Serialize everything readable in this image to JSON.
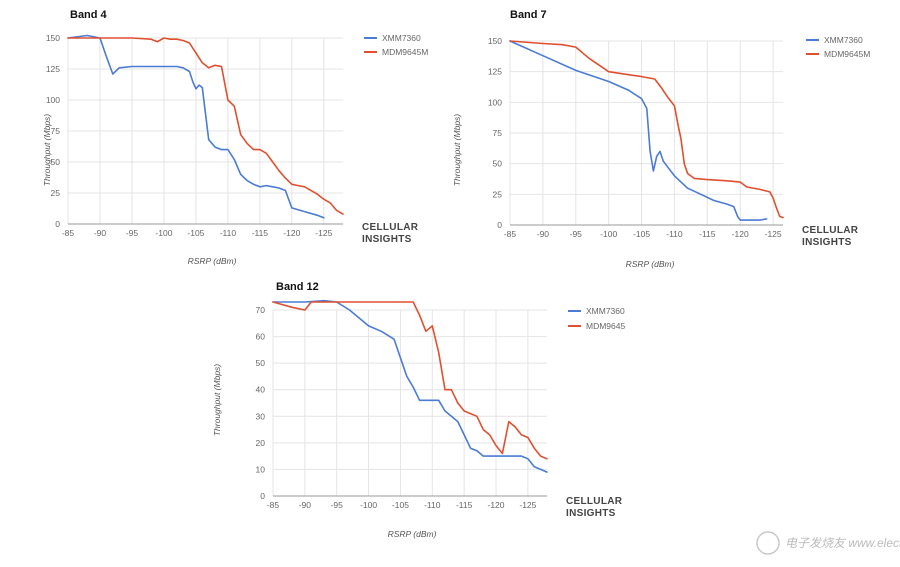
{
  "colors": {
    "xmm": "#4a7bd6",
    "mdm": "#e0502f"
  },
  "branding": {
    "line1": "CELLULAR",
    "line2": "INSIGHTS"
  },
  "watermark": "电子发烧友 www.elecfans.com",
  "chart_data": [
    {
      "type": "line",
      "title": "Band 4",
      "xlabel": "RSRP (dBm)",
      "ylabel": "Throughput (Mbps)",
      "xlim": [
        -85,
        -128
      ],
      "ylim": [
        0,
        150
      ],
      "xticks": [
        -85,
        -90,
        -95,
        -100,
        -105,
        -110,
        -115,
        -120,
        -125
      ],
      "yticks": [
        0,
        25,
        50,
        75,
        100,
        125,
        150
      ],
      "series": [
        {
          "name": "XMM7360",
          "x": [
            -85,
            -88,
            -90,
            -91,
            -92,
            -93,
            -95,
            -100,
            -102,
            -103,
            -104,
            -104.5,
            -105,
            -105.5,
            -106,
            -107,
            -108,
            -109,
            -110,
            -111,
            -112,
            -113,
            -114,
            -115,
            -116,
            -117,
            -118,
            -119,
            -120,
            -122,
            -124,
            -125
          ],
          "y": [
            150,
            152,
            150,
            135,
            121,
            126,
            127,
            127,
            127,
            126,
            123,
            115,
            109,
            112,
            110,
            68,
            62,
            60,
            60,
            52,
            40,
            35,
            32,
            30,
            31,
            30,
            29,
            27,
            13,
            10,
            7,
            5
          ]
        },
        {
          "name": "MDM9645M",
          "x": [
            -85,
            -90,
            -95,
            -98,
            -99,
            -100,
            -101,
            -102,
            -103,
            -104,
            -105,
            -106,
            -107,
            -108,
            -109,
            -110,
            -111,
            -112,
            -113,
            -114,
            -115,
            -116,
            -117,
            -118,
            -119,
            -120,
            -121,
            -122,
            -124,
            -125,
            -126,
            -127,
            -128
          ],
          "y": [
            150,
            150,
            150,
            149,
            147,
            150,
            149,
            149,
            148,
            146,
            138,
            130,
            126,
            128,
            127,
            100,
            95,
            72,
            65,
            60,
            60,
            57,
            50,
            43,
            37,
            32,
            31,
            30,
            24,
            20,
            17,
            11,
            8
          ]
        }
      ]
    },
    {
      "type": "line",
      "title": "Band 7",
      "xlabel": "RSRP (dBm)",
      "ylabel": "Throughput (Mbps)",
      "xlim": [
        -85,
        -126.5
      ],
      "ylim": [
        0,
        150
      ],
      "xticks": [
        -85,
        -90,
        -95,
        -100,
        -105,
        -110,
        -115,
        -120,
        -125
      ],
      "yticks": [
        0,
        25,
        50,
        75,
        100,
        125,
        150
      ],
      "series": [
        {
          "name": "XMM7360",
          "x": [
            -85,
            -90,
            -95,
            -100,
            -103,
            -105,
            -105.8,
            -106.3,
            -106.8,
            -107.3,
            -107.8,
            -108.3,
            -109,
            -110,
            -112,
            -114,
            -116,
            -118,
            -119,
            -119.6,
            -120,
            -121,
            -123,
            -124
          ],
          "y": [
            150,
            138,
            126,
            117,
            110,
            103,
            95,
            60,
            44,
            56,
            60,
            52,
            47,
            40,
            30,
            25,
            20,
            17,
            15,
            7,
            4,
            4,
            4,
            5
          ]
        },
        {
          "name": "MDM9645M",
          "x": [
            -85,
            -90,
            -93,
            -95,
            -97,
            -100,
            -105,
            -107,
            -108,
            -109,
            -110,
            -110.5,
            -111,
            -111.5,
            -112,
            -113,
            -115,
            -118,
            -120,
            -121,
            -123,
            -124.5,
            -125,
            -125.5,
            -126,
            -126.5
          ],
          "y": [
            150,
            148,
            147,
            145,
            136,
            125,
            121,
            119,
            112,
            104,
            97,
            83,
            70,
            50,
            42,
            38,
            37,
            36,
            35,
            31,
            29,
            27,
            22,
            14,
            7,
            6
          ]
        }
      ]
    },
    {
      "type": "line",
      "title": "Band 12",
      "xlabel": "RSRP (dBm)",
      "ylabel": "Throughput (Mbps)",
      "xlim": [
        -85,
        -128
      ],
      "ylim": [
        0,
        70
      ],
      "xticks": [
        -85,
        -90,
        -95,
        -100,
        -105,
        -110,
        -115,
        -120,
        -125
      ],
      "yticks": [
        0,
        10,
        20,
        30,
        40,
        50,
        60,
        70
      ],
      "series": [
        {
          "name": "XMM7360",
          "x": [
            -85,
            -90,
            -93,
            -95,
            -97,
            -100,
            -102,
            -104,
            -105,
            -106,
            -107,
            -108,
            -109,
            -111,
            -112,
            -113,
            -114,
            -115,
            -116,
            -117,
            -118,
            -120,
            -122,
            -124,
            -125,
            -126,
            -127,
            -128
          ],
          "y": [
            73,
            73,
            73.5,
            73,
            70,
            64,
            62,
            59,
            52,
            45,
            41,
            36,
            36,
            36,
            32,
            30,
            28,
            23,
            18,
            17,
            15,
            15,
            15,
            15,
            14,
            11,
            10,
            9
          ]
        },
        {
          "name": "MDM9645",
          "x": [
            -85,
            -88,
            -90,
            -91,
            -92,
            -95,
            -100,
            -105,
            -107,
            -108,
            -109,
            -110,
            -111,
            -112,
            -113,
            -114,
            -115,
            -116,
            -117,
            -118,
            -119,
            -120,
            -121,
            -122,
            -123,
            -124,
            -125,
            -126,
            -127,
            -128
          ],
          "y": [
            73,
            71,
            70,
            73,
            73,
            73,
            73,
            73,
            73,
            68,
            62,
            64,
            54,
            40,
            40,
            35,
            32,
            31,
            30,
            25,
            23,
            19,
            16,
            28,
            26,
            23,
            22,
            18,
            15,
            14
          ]
        }
      ]
    }
  ]
}
